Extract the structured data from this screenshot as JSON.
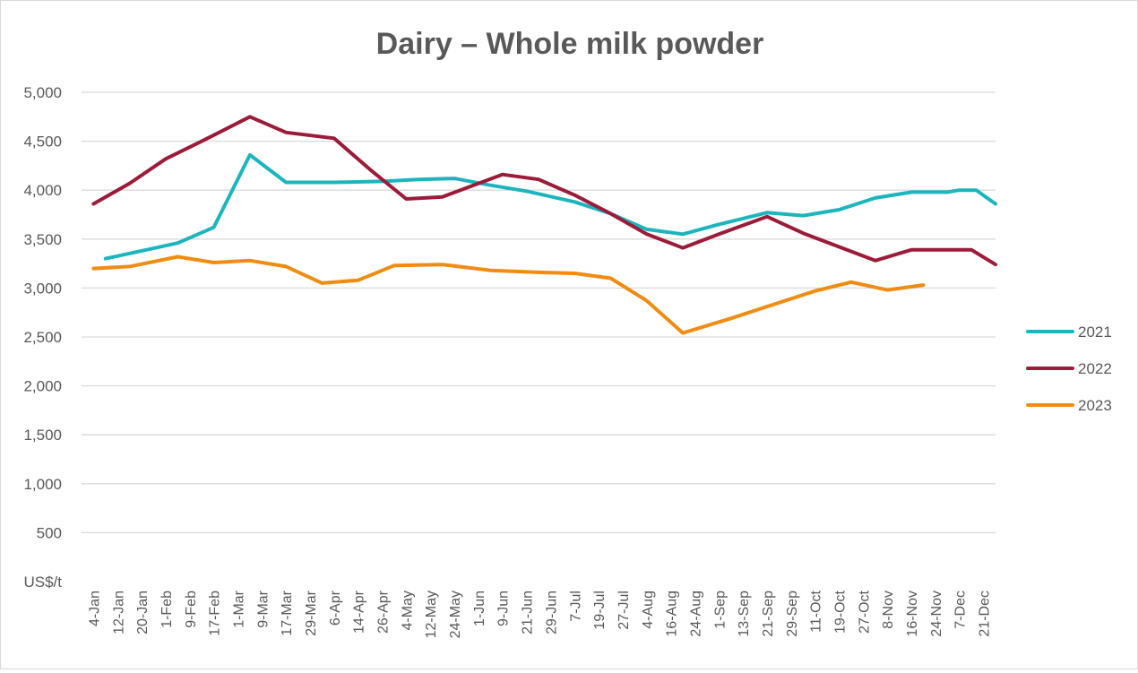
{
  "chart_data": {
    "type": "line",
    "title": "Dairy – Whole milk powder",
    "ylabel": "US$/t",
    "xlabel": "",
    "ylim": [
      0,
      5000
    ],
    "yticks": [
      {
        "value": 500,
        "label": "500"
      },
      {
        "value": 1000,
        "label": "1,000"
      },
      {
        "value": 1500,
        "label": "1,500"
      },
      {
        "value": 2000,
        "label": "2,000"
      },
      {
        "value": 2500,
        "label": "2,500"
      },
      {
        "value": 3000,
        "label": "3,000"
      },
      {
        "value": 3500,
        "label": "3,500"
      },
      {
        "value": 4000,
        "label": "4,000"
      },
      {
        "value": 4500,
        "label": "4,500"
      },
      {
        "value": 5000,
        "label": "5,000"
      }
    ],
    "grid": true,
    "legend_position": "right",
    "categories": [
      "4-Jan",
      "12-Jan",
      "20-Jan",
      "1-Feb",
      "9-Feb",
      "17-Feb",
      "1-Mar",
      "9-Mar",
      "17-Mar",
      "29-Mar",
      "6-Apr",
      "14-Apr",
      "26-Apr",
      "4-May",
      "12-May",
      "24-May",
      "1-Jun",
      "9-Jun",
      "21-Jun",
      "29-Jun",
      "7-Jul",
      "19-Jul",
      "27-Jul",
      "4-Aug",
      "16-Aug",
      "24-Aug",
      "1-Sep",
      "13-Sep",
      "21-Sep",
      "29-Sep",
      "11-Oct",
      "19-Oct",
      "27-Oct",
      "8-Nov",
      "16-Nov",
      "24-Nov",
      "7-Dec",
      "21-Dec"
    ],
    "series": [
      {
        "name": "2021",
        "color": "#1cb5bd",
        "points": [
          {
            "x": 0.5,
            "y": 3300
          },
          {
            "x": 2.0,
            "y": 3380
          },
          {
            "x": 3.5,
            "y": 3460
          },
          {
            "x": 5.0,
            "y": 3620
          },
          {
            "x": 6.5,
            "y": 4360
          },
          {
            "x": 8.0,
            "y": 4080
          },
          {
            "x": 10.0,
            "y": 4080
          },
          {
            "x": 12.0,
            "y": 4090
          },
          {
            "x": 13.5,
            "y": 4110
          },
          {
            "x": 15.0,
            "y": 4120
          },
          {
            "x": 16.5,
            "y": 4050
          },
          {
            "x": 18.0,
            "y": 3990
          },
          {
            "x": 20.0,
            "y": 3880
          },
          {
            "x": 21.5,
            "y": 3760
          },
          {
            "x": 23.0,
            "y": 3600
          },
          {
            "x": 24.5,
            "y": 3550
          },
          {
            "x": 26.0,
            "y": 3650
          },
          {
            "x": 28.0,
            "y": 3770
          },
          {
            "x": 29.5,
            "y": 3740
          },
          {
            "x": 31.0,
            "y": 3800
          },
          {
            "x": 32.5,
            "y": 3920
          },
          {
            "x": 34.0,
            "y": 3980
          },
          {
            "x": 35.5,
            "y": 3980
          },
          {
            "x": 36.0,
            "y": 4000
          },
          {
            "x": 36.7,
            "y": 4000
          },
          {
            "x": 37.5,
            "y": 3860
          }
        ]
      },
      {
        "name": "2022",
        "color": "#9b1b39",
        "points": [
          {
            "x": 0.0,
            "y": 3860
          },
          {
            "x": 1.5,
            "y": 4070
          },
          {
            "x": 3.0,
            "y": 4320
          },
          {
            "x": 4.5,
            "y": 4500
          },
          {
            "x": 6.5,
            "y": 4750
          },
          {
            "x": 8.0,
            "y": 4590
          },
          {
            "x": 10.0,
            "y": 4530
          },
          {
            "x": 11.5,
            "y": 4210
          },
          {
            "x": 13.0,
            "y": 3910
          },
          {
            "x": 14.5,
            "y": 3930
          },
          {
            "x": 17.0,
            "y": 4160
          },
          {
            "x": 18.5,
            "y": 4110
          },
          {
            "x": 20.0,
            "y": 3950
          },
          {
            "x": 21.5,
            "y": 3760
          },
          {
            "x": 23.0,
            "y": 3550
          },
          {
            "x": 24.5,
            "y": 3410
          },
          {
            "x": 26.0,
            "y": 3550
          },
          {
            "x": 28.0,
            "y": 3730
          },
          {
            "x": 29.5,
            "y": 3560
          },
          {
            "x": 31.0,
            "y": 3420
          },
          {
            "x": 32.5,
            "y": 3280
          },
          {
            "x": 34.0,
            "y": 3390
          },
          {
            "x": 35.5,
            "y": 3390
          },
          {
            "x": 36.5,
            "y": 3390
          },
          {
            "x": 37.5,
            "y": 3240
          }
        ]
      },
      {
        "name": "2023",
        "color": "#ef8c11",
        "points": [
          {
            "x": 0.0,
            "y": 3200
          },
          {
            "x": 1.5,
            "y": 3220
          },
          {
            "x": 3.5,
            "y": 3320
          },
          {
            "x": 5.0,
            "y": 3260
          },
          {
            "x": 6.5,
            "y": 3280
          },
          {
            "x": 8.0,
            "y": 3220
          },
          {
            "x": 9.5,
            "y": 3050
          },
          {
            "x": 11.0,
            "y": 3080
          },
          {
            "x": 12.5,
            "y": 3230
          },
          {
            "x": 14.5,
            "y": 3240
          },
          {
            "x": 16.5,
            "y": 3180
          },
          {
            "x": 18.5,
            "y": 3160
          },
          {
            "x": 20.0,
            "y": 3150
          },
          {
            "x": 21.5,
            "y": 3100
          },
          {
            "x": 23.0,
            "y": 2870
          },
          {
            "x": 24.5,
            "y": 2540
          },
          {
            "x": 26.5,
            "y": 2690
          },
          {
            "x": 28.0,
            "y": 2810
          },
          {
            "x": 30.0,
            "y": 2970
          },
          {
            "x": 31.5,
            "y": 3060
          },
          {
            "x": 33.0,
            "y": 2980
          },
          {
            "x": 34.5,
            "y": 3030
          }
        ]
      }
    ]
  }
}
